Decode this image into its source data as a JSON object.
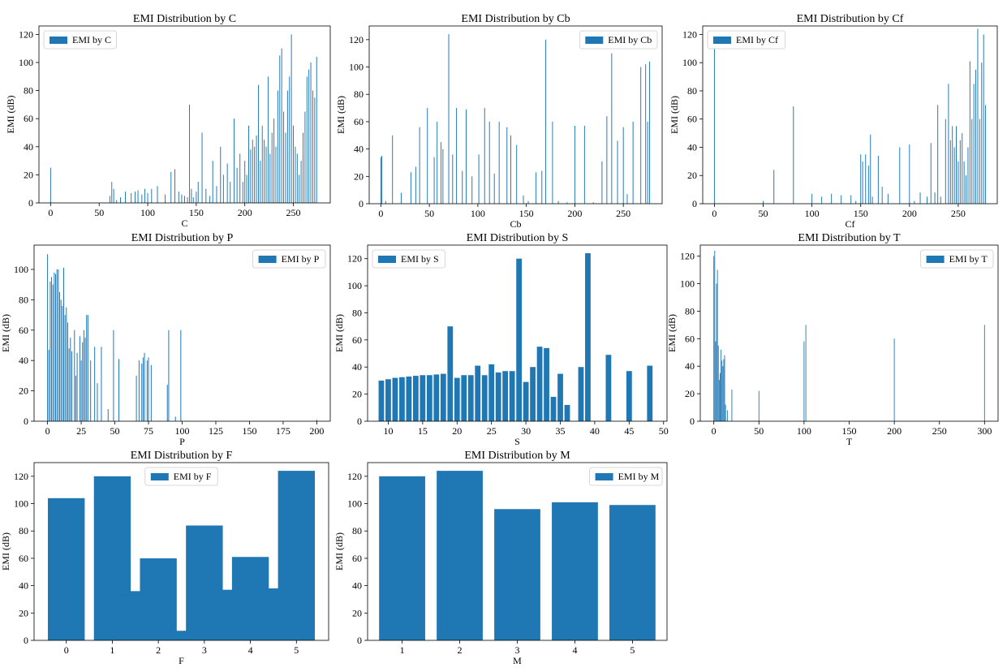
{
  "figure": {
    "bar_color": "#1f77b4",
    "axis_color": "#000000",
    "background": "#ffffff"
  },
  "chart_data": [
    {
      "id": "C",
      "type": "bar",
      "title": "EMI Distribution by C",
      "xlabel": "C",
      "ylabel": "EMI (dB)",
      "legend": "EMI by C",
      "legend_position": "top-left",
      "xlim": [
        -12,
        288
      ],
      "ylim": [
        0,
        126
      ],
      "xticks": [
        0,
        50,
        100,
        150,
        200,
        250
      ],
      "yticks": [
        0,
        20,
        40,
        60,
        80,
        100,
        120
      ],
      "bar_width": 0.8,
      "x": [
        0,
        61,
        63,
        65,
        68,
        72,
        77,
        83,
        87,
        90,
        94,
        97,
        100,
        104,
        110,
        118,
        124,
        128,
        132,
        135,
        138,
        141,
        143,
        145,
        147,
        150,
        152,
        156,
        160,
        164,
        167,
        171,
        175,
        178,
        182,
        185,
        189,
        192,
        195,
        198,
        200,
        202,
        204,
        206,
        208,
        210,
        212,
        214,
        216,
        218,
        220,
        222,
        224,
        226,
        228,
        230,
        232,
        234,
        236,
        238,
        240,
        242,
        244,
        246,
        248,
        250,
        252,
        254,
        256,
        258,
        260,
        262,
        264,
        266,
        268,
        270,
        272,
        274
      ],
      "values": [
        25,
        5,
        15,
        10,
        2,
        4,
        8,
        7,
        8,
        9,
        6,
        10,
        7,
        10,
        12,
        6,
        22,
        24,
        8,
        6,
        5,
        4,
        70,
        10,
        4,
        8,
        15,
        50,
        10,
        5,
        30,
        12,
        40,
        20,
        28,
        15,
        60,
        25,
        35,
        15,
        30,
        20,
        55,
        38,
        45,
        40,
        48,
        84,
        30,
        55,
        45,
        40,
        90,
        35,
        50,
        60,
        40,
        80,
        105,
        110,
        65,
        50,
        80,
        90,
        120,
        55,
        40,
        35,
        20,
        30,
        50,
        65,
        90,
        95,
        100,
        80,
        75,
        104
      ]
    },
    {
      "id": "Cb",
      "type": "bar",
      "title": "EMI Distribution by Cb",
      "xlabel": "Cb",
      "ylabel": "EMI (dB)",
      "legend": "EMI by Cb",
      "legend_position": "top-right",
      "xlim": [
        -12,
        290
      ],
      "ylim": [
        0,
        130
      ],
      "xticks": [
        0,
        50,
        100,
        150,
        200,
        250
      ],
      "yticks": [
        0,
        20,
        40,
        60,
        80,
        100,
        120
      ],
      "bar_width": 0.8,
      "x": [
        0,
        1,
        5,
        12,
        21,
        31,
        36,
        40,
        48,
        55,
        58,
        62,
        64,
        70,
        74,
        78,
        84,
        88,
        94,
        101,
        107,
        112,
        117,
        122,
        130,
        134,
        140,
        147,
        152,
        160,
        166,
        170,
        177,
        183,
        192,
        200,
        210,
        219,
        228,
        233,
        238,
        244,
        250,
        254,
        260,
        268,
        273,
        275,
        277
      ],
      "values": [
        34,
        35,
        2,
        50,
        8,
        23,
        27,
        56,
        70,
        34,
        60,
        45,
        40,
        124,
        36,
        70,
        24,
        69,
        20,
        36,
        70,
        60,
        22,
        60,
        56,
        50,
        43,
        6,
        2,
        23,
        24,
        120,
        60,
        2,
        1,
        57,
        57,
        1,
        31,
        64,
        110,
        46,
        56,
        7,
        60,
        100,
        102,
        60,
        104
      ]
    },
    {
      "id": "Cf",
      "type": "bar",
      "title": "EMI Distribution by Cf",
      "xlabel": "Cf",
      "ylabel": "EMI (dB)",
      "legend": "EMI by Cf",
      "legend_position": "top-left",
      "xlim": [
        -12,
        290
      ],
      "ylim": [
        0,
        126
      ],
      "xticks": [
        0,
        50,
        100,
        150,
        200,
        250
      ],
      "yticks": [
        0,
        20,
        40,
        60,
        80,
        100,
        120
      ],
      "bar_width": 0.8,
      "x": [
        0,
        50,
        61,
        81,
        100,
        110,
        120,
        130,
        140,
        145,
        150,
        152,
        155,
        158,
        160,
        162,
        168,
        172,
        178,
        190,
        200,
        205,
        211,
        218,
        222,
        226,
        229,
        232,
        237,
        240,
        242,
        244,
        246,
        248,
        250,
        252,
        254,
        256,
        258,
        260,
        262,
        264,
        266,
        268,
        270,
        272,
        274,
        276,
        278
      ],
      "values": [
        110,
        2,
        24,
        69,
        7,
        5,
        7,
        6,
        6,
        2,
        35,
        30,
        35,
        27,
        49,
        5,
        34,
        12,
        7,
        40,
        42,
        2,
        8,
        5,
        43,
        8,
        70,
        5,
        60,
        85,
        45,
        55,
        40,
        55,
        30,
        45,
        50,
        30,
        20,
        40,
        101,
        60,
        85,
        95,
        124,
        60,
        100,
        120,
        70
      ]
    },
    {
      "id": "P",
      "type": "bar",
      "title": "EMI Distribution by P",
      "xlabel": "P",
      "ylabel": "EMI (dB)",
      "legend": "EMI by P",
      "legend_position": "top-right",
      "xlim": [
        -10,
        210
      ],
      "ylim": [
        0,
        116
      ],
      "xticks": [
        0,
        25,
        50,
        75,
        100,
        125,
        150,
        175,
        200
      ],
      "yticks": [
        0,
        20,
        40,
        60,
        80,
        100
      ],
      "bar_width": 0.6,
      "x": [
        0,
        1,
        2,
        3,
        4,
        5,
        6,
        7,
        8,
        9,
        10,
        11,
        12,
        13,
        14,
        15,
        16,
        17,
        18,
        20,
        21,
        22,
        24,
        25,
        26,
        27,
        28,
        29,
        30,
        32,
        35,
        37,
        40,
        45,
        49,
        53,
        66,
        68,
        70,
        71,
        72,
        74,
        75,
        77,
        89,
        90,
        95,
        99,
        200
      ],
      "values": [
        110,
        47,
        92,
        95,
        90,
        98,
        97,
        100,
        100,
        85,
        80,
        76,
        101,
        70,
        75,
        65,
        48,
        55,
        46,
        60,
        30,
        45,
        56,
        40,
        52,
        60,
        55,
        70,
        70,
        40,
        49,
        25,
        49,
        8,
        60,
        41,
        30,
        40,
        38,
        42,
        45,
        40,
        42,
        37,
        24,
        60,
        3,
        60,
        1
      ]
    },
    {
      "id": "S",
      "type": "bar",
      "title": "EMI Distribution by S",
      "xlabel": "S",
      "ylabel": "EMI (dB)",
      "legend": "EMI by S",
      "legend_position": "top-left",
      "xlim": [
        7,
        50.5
      ],
      "ylim": [
        0,
        130
      ],
      "xticks": [
        10,
        15,
        20,
        25,
        30,
        35,
        40,
        45,
        50
      ],
      "yticks": [
        0,
        20,
        40,
        60,
        80,
        100,
        120
      ],
      "bar_width": 0.8,
      "x": [
        9,
        10,
        11,
        12,
        13,
        14,
        15,
        16,
        17,
        18,
        19,
        20,
        21,
        22,
        23,
        24,
        25,
        26,
        27,
        28,
        29,
        30,
        31,
        32,
        33,
        34,
        35,
        36,
        38,
        39,
        42,
        45,
        48
      ],
      "values": [
        30,
        31,
        32,
        32.5,
        33,
        33.5,
        34,
        34,
        34.5,
        35,
        70,
        32,
        34,
        34,
        41,
        34,
        42,
        36,
        37,
        37,
        120,
        29,
        40,
        55,
        54,
        18,
        35,
        12,
        40,
        124,
        49,
        37,
        41
      ]
    },
    {
      "id": "T",
      "type": "bar",
      "title": "EMI Distribution by T",
      "xlabel": "T",
      "ylabel": "EMI (dB)",
      "legend": "EMI by T",
      "legend_position": "top-right",
      "xlim": [
        -15,
        315
      ],
      "ylim": [
        0,
        128
      ],
      "xticks": [
        0,
        50,
        100,
        150,
        200,
        250,
        300
      ],
      "yticks": [
        0,
        20,
        40,
        60,
        80,
        100,
        120
      ],
      "bar_width": 0.8,
      "x": [
        0,
        1,
        2,
        3,
        4,
        5,
        6,
        7,
        8,
        9,
        10,
        11,
        12,
        13,
        15,
        20,
        50,
        100,
        102,
        200,
        300
      ],
      "values": [
        120,
        124,
        58,
        100,
        110,
        55,
        30,
        35,
        52,
        44,
        40,
        45,
        48,
        12,
        8,
        23,
        22,
        58,
        70,
        60,
        70
      ]
    },
    {
      "id": "F",
      "type": "bar",
      "title": "EMI Distribution by F",
      "xlabel": "F",
      "ylabel": "EMI (dB)",
      "legend": "EMI by F",
      "legend_position": "top-center",
      "xlim": [
        -0.7,
        5.7
      ],
      "ylim": [
        0,
        130
      ],
      "xticks": [
        0,
        1,
        2,
        3,
        4,
        5
      ],
      "yticks": [
        0,
        20,
        40,
        60,
        80,
        100,
        120
      ],
      "bar_width": 0.8,
      "x": [
        0,
        1,
        1.4,
        1.45,
        2,
        2.5,
        3,
        3.5,
        4,
        4.5,
        5
      ],
      "values": [
        104,
        120,
        36,
        33,
        60,
        7,
        84,
        37,
        61,
        38,
        124
      ]
    },
    {
      "id": "M",
      "type": "bar",
      "title": "EMI Distribution by M",
      "xlabel": "M",
      "ylabel": "EMI (dB)",
      "legend": "EMI by M",
      "legend_position": "top-right",
      "xlim": [
        0.4,
        5.6
      ],
      "ylim": [
        0,
        130
      ],
      "xticks": [
        1,
        2,
        3,
        4,
        5
      ],
      "yticks": [
        0,
        20,
        40,
        60,
        80,
        100,
        120
      ],
      "bar_width": 0.8,
      "x": [
        1,
        2,
        3,
        4,
        5
      ],
      "values": [
        120,
        124,
        96,
        101,
        99
      ]
    }
  ]
}
